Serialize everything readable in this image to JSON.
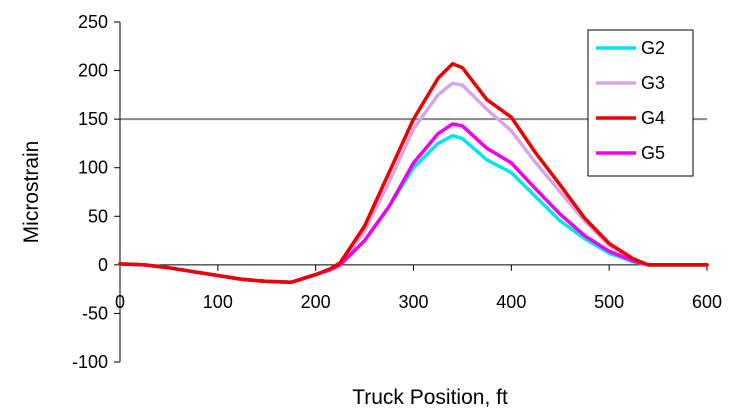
{
  "chart_data": {
    "type": "line",
    "xlabel": "Truck Position, ft",
    "ylabel": "Microstrain",
    "xlim": [
      0,
      600
    ],
    "ylim": [
      -100,
      250
    ],
    "xticks": [
      "0",
      "100",
      "200",
      "300",
      "400",
      "500",
      "600"
    ],
    "yticks": [
      "250",
      "200",
      "150",
      "100",
      "50",
      "0",
      "-50",
      "-100"
    ],
    "grid": "horizontal line at 150",
    "legend_position": "top-right",
    "series": [
      {
        "name": "G2",
        "color": "#00e5ee",
        "x": [
          0,
          25,
          50,
          75,
          100,
          125,
          150,
          175,
          200,
          215,
          225,
          250,
          275,
          300,
          325,
          340,
          350,
          375,
          400,
          425,
          450,
          475,
          500,
          525,
          540,
          600
        ],
        "y": [
          1,
          0,
          -3,
          -7,
          -11,
          -15,
          -17,
          -18,
          -10,
          -5,
          0,
          25,
          60,
          100,
          125,
          133,
          130,
          108,
          95,
          70,
          45,
          27,
          12,
          3,
          0,
          0
        ]
      },
      {
        "name": "G3",
        "color": "#d8a6e8",
        "x": [
          0,
          25,
          50,
          75,
          100,
          125,
          150,
          175,
          200,
          215,
          225,
          250,
          275,
          300,
          325,
          340,
          350,
          375,
          400,
          425,
          450,
          475,
          500,
          525,
          540,
          600
        ],
        "y": [
          1,
          0,
          -3,
          -7,
          -11,
          -15,
          -17,
          -18,
          -10,
          -5,
          0,
          35,
          85,
          140,
          175,
          187,
          185,
          160,
          138,
          105,
          75,
          45,
          20,
          5,
          0,
          0
        ]
      },
      {
        "name": "G4",
        "color": "#ee0000",
        "x": [
          0,
          25,
          50,
          75,
          100,
          125,
          150,
          175,
          200,
          215,
          225,
          250,
          275,
          300,
          325,
          340,
          350,
          375,
          400,
          425,
          450,
          475,
          500,
          525,
          540,
          600
        ],
        "y": [
          1,
          0,
          -3,
          -7,
          -11,
          -15,
          -17,
          -18,
          -10,
          -4,
          2,
          40,
          95,
          150,
          192,
          207,
          203,
          170,
          152,
          115,
          82,
          48,
          22,
          6,
          0,
          0
        ]
      },
      {
        "name": "G5",
        "color": "#ee00ee",
        "x": [
          0,
          25,
          50,
          75,
          100,
          125,
          150,
          175,
          200,
          215,
          225,
          250,
          275,
          300,
          325,
          340,
          350,
          375,
          400,
          425,
          450,
          475,
          500,
          525,
          540,
          600
        ],
        "y": [
          1,
          0,
          -3,
          -7,
          -11,
          -15,
          -17,
          -18,
          -10,
          -5,
          0,
          25,
          60,
          105,
          135,
          145,
          143,
          120,
          105,
          78,
          52,
          30,
          14,
          4,
          0,
          0
        ]
      }
    ]
  }
}
